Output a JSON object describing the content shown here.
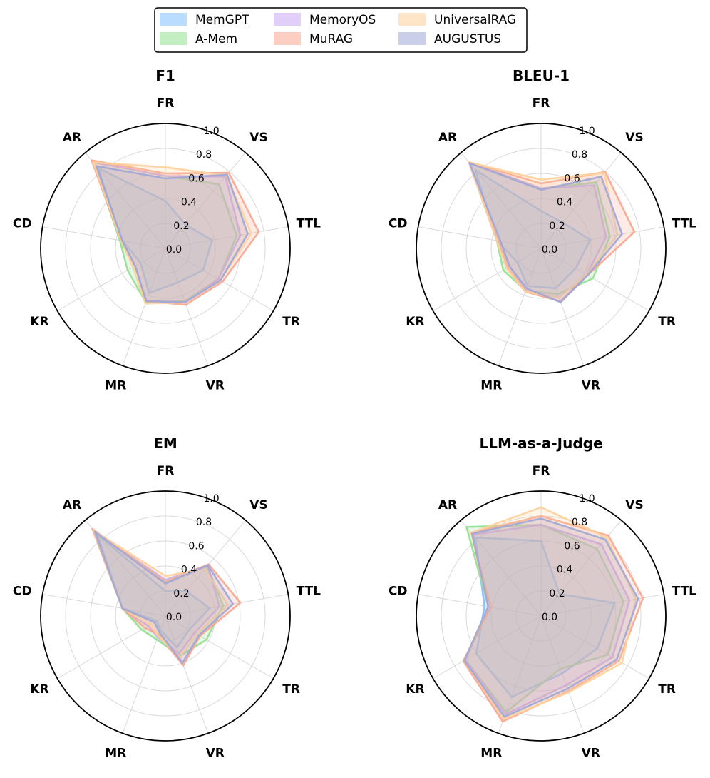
{
  "legend": [
    {
      "name": "MemGPT",
      "color": "#7fbfff"
    },
    {
      "name": "A-Mem",
      "color": "#90e090"
    },
    {
      "name": "MemoryOS",
      "color": "#c9a7f5"
    },
    {
      "name": "MuRAG",
      "color": "#f9a58f"
    },
    {
      "name": "UniversalRAG",
      "color": "#ffd09a"
    },
    {
      "name": "AUGUSTUS",
      "color": "#9ea6d6"
    }
  ],
  "chart_data": [
    {
      "type": "radar",
      "title": "F1",
      "axes": [
        "FR",
        "VS",
        "TTL",
        "TR",
        "VR",
        "MR",
        "KR",
        "CD",
        "AR"
      ],
      "radial_ticks": [
        "0.0",
        "0.2",
        "0.4",
        "0.6",
        "0.8",
        "1.0"
      ],
      "rlim": [
        0,
        1.0
      ],
      "series": [
        {
          "name": "MemGPT",
          "values": [
            0.38,
            0.25,
            0.38,
            0.35,
            0.29,
            0.38,
            0.23,
            0.35,
            0.84
          ]
        },
        {
          "name": "A-Mem",
          "values": [
            0.58,
            0.67,
            0.58,
            0.49,
            0.45,
            0.46,
            0.35,
            0.37,
            0.9
          ]
        },
        {
          "name": "MemoryOS",
          "values": [
            0.58,
            0.75,
            0.61,
            0.49,
            0.46,
            0.45,
            0.28,
            0.35,
            0.9
          ]
        },
        {
          "name": "MuRAG",
          "values": [
            0.6,
            0.79,
            0.76,
            0.53,
            0.48,
            0.45,
            0.28,
            0.36,
            0.92
          ]
        },
        {
          "name": "UniversalRAG",
          "values": [
            0.65,
            0.76,
            0.7,
            0.51,
            0.46,
            0.47,
            0.3,
            0.36,
            0.9
          ]
        },
        {
          "name": "AUGUSTUS",
          "values": [
            0.56,
            0.77,
            0.67,
            0.51,
            0.46,
            0.45,
            0.28,
            0.35,
            0.86
          ]
        }
      ]
    },
    {
      "type": "radar",
      "title": "BLEU-1",
      "axes": [
        "FR",
        "VS",
        "TTL",
        "TR",
        "VR",
        "MR",
        "KR",
        "CD",
        "AR"
      ],
      "radial_ticks": [
        "0.0",
        "0.2",
        "0.4",
        "0.6",
        "0.8",
        "1.0"
      ],
      "rlim": [
        0,
        1.0
      ],
      "series": [
        {
          "name": "MemGPT",
          "values": [
            0.3,
            0.27,
            0.4,
            0.32,
            0.34,
            0.32,
            0.22,
            0.36,
            0.82
          ]
        },
        {
          "name": "A-Mem",
          "values": [
            0.48,
            0.69,
            0.56,
            0.48,
            0.39,
            0.36,
            0.35,
            0.36,
            0.9
          ]
        },
        {
          "name": "MemoryOS",
          "values": [
            0.48,
            0.66,
            0.53,
            0.42,
            0.42,
            0.36,
            0.29,
            0.36,
            0.9
          ]
        },
        {
          "name": "MuRAG",
          "values": [
            0.52,
            0.8,
            0.76,
            0.43,
            0.45,
            0.37,
            0.31,
            0.35,
            0.9
          ]
        },
        {
          "name": "UniversalRAG",
          "values": [
            0.55,
            0.79,
            0.62,
            0.42,
            0.42,
            0.37,
            0.32,
            0.36,
            0.9
          ]
        },
        {
          "name": "AUGUSTUS",
          "values": [
            0.47,
            0.75,
            0.66,
            0.43,
            0.46,
            0.34,
            0.29,
            0.33,
            0.89
          ]
        }
      ]
    },
    {
      "type": "radar",
      "title": "EM",
      "axes": [
        "FR",
        "VS",
        "TTL",
        "TR",
        "VR",
        "MR",
        "KR",
        "CD",
        "AR"
      ],
      "radial_ticks": [
        "0.0",
        "0.2",
        "0.4",
        "0.6",
        "0.8",
        "1.0"
      ],
      "rlim": [
        0,
        1.0
      ],
      "series": [
        {
          "name": "MemGPT",
          "values": [
            0.2,
            0.26,
            0.36,
            0.22,
            0.27,
            0.12,
            0.08,
            0.35,
            0.85
          ]
        },
        {
          "name": "A-Mem",
          "values": [
            0.28,
            0.52,
            0.47,
            0.38,
            0.34,
            0.2,
            0.22,
            0.35,
            0.89
          ]
        },
        {
          "name": "MemoryOS",
          "values": [
            0.29,
            0.53,
            0.44,
            0.27,
            0.32,
            0.18,
            0.16,
            0.35,
            0.88
          ]
        },
        {
          "name": "MuRAG",
          "values": [
            0.27,
            0.54,
            0.61,
            0.32,
            0.42,
            0.16,
            0.19,
            0.35,
            0.91
          ]
        },
        {
          "name": "UniversalRAG",
          "values": [
            0.32,
            0.49,
            0.51,
            0.29,
            0.35,
            0.17,
            0.14,
            0.35,
            0.89
          ]
        },
        {
          "name": "AUGUSTUS",
          "values": [
            0.26,
            0.53,
            0.55,
            0.31,
            0.4,
            0.14,
            0.1,
            0.35,
            0.88
          ]
        }
      ]
    },
    {
      "type": "radar",
      "title": "LLM-as-a-Judge",
      "axes": [
        "FR",
        "VS",
        "TTL",
        "TR",
        "VR",
        "MR",
        "KR",
        "CD",
        "AR"
      ],
      "radial_ticks": [
        "0.0",
        "0.2",
        "0.4",
        "0.6",
        "0.8",
        "1.0"
      ],
      "rlim": [
        0,
        1.0
      ],
      "series": [
        {
          "name": "MemGPT",
          "values": [
            0.6,
            0.23,
            0.6,
            0.52,
            0.49,
            0.69,
            0.6,
            0.46,
            0.82
          ]
        },
        {
          "name": "A-Mem",
          "values": [
            0.73,
            0.7,
            0.67,
            0.62,
            0.45,
            0.82,
            0.7,
            0.43,
            0.93
          ]
        },
        {
          "name": "MemoryOS",
          "values": [
            0.73,
            0.75,
            0.72,
            0.66,
            0.59,
            0.84,
            0.7,
            0.43,
            0.85
          ]
        },
        {
          "name": "MuRAG",
          "values": [
            0.8,
            0.84,
            0.83,
            0.72,
            0.64,
            0.9,
            0.72,
            0.41,
            0.87
          ]
        },
        {
          "name": "UniversalRAG",
          "values": [
            0.87,
            0.82,
            0.77,
            0.75,
            0.65,
            0.88,
            0.71,
            0.43,
            0.87
          ]
        },
        {
          "name": "AUGUSTUS",
          "values": [
            0.78,
            0.8,
            0.79,
            0.7,
            0.62,
            0.86,
            0.71,
            0.43,
            0.86
          ]
        }
      ]
    }
  ]
}
